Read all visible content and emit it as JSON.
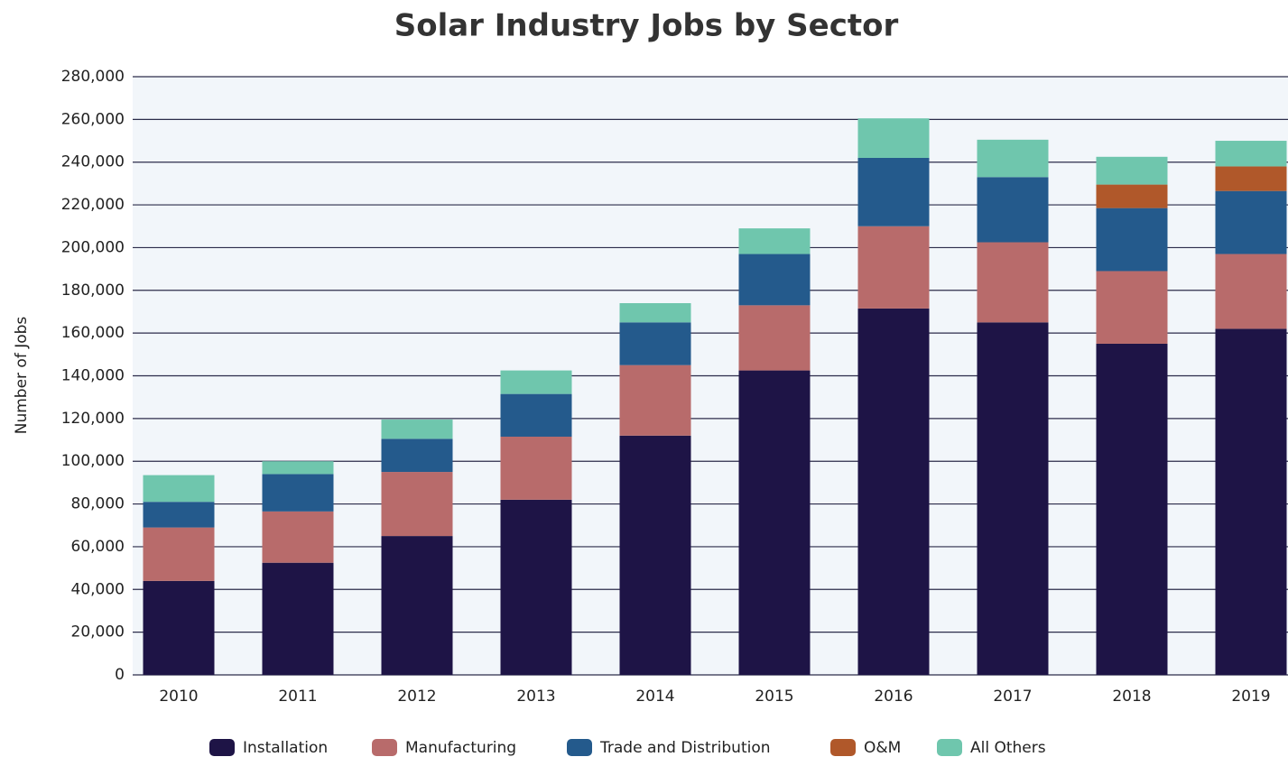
{
  "chart_data": {
    "type": "stacked_bar",
    "title": "Solar Industry Jobs by Sector",
    "y_label": "Number of Jobs",
    "categories": [
      "2010",
      "2011",
      "2012",
      "2013",
      "2014",
      "2015",
      "2016",
      "2017",
      "2018",
      "2019"
    ],
    "series": [
      {
        "name": "Installation",
        "color": "#1e1446",
        "values": [
          44000,
          52500,
          65000,
          82000,
          112000,
          142500,
          171500,
          165000,
          155000,
          162000
        ]
      },
      {
        "name": "Manufacturing",
        "color": "#b86b6b",
        "values": [
          25000,
          24000,
          30000,
          29500,
          33000,
          30500,
          38500,
          37500,
          34000,
          35000
        ]
      },
      {
        "name": "Trade and Distribution",
        "color": "#245a8c",
        "values": [
          12000,
          17500,
          15500,
          20000,
          20000,
          24000,
          32000,
          30500,
          29500,
          29500
        ]
      },
      {
        "name": "O&M",
        "color": "#b0582a",
        "values": [
          0,
          0,
          0,
          0,
          0,
          0,
          0,
          0,
          11000,
          11500
        ]
      },
      {
        "name": "All Others",
        "color": "#6fc6ad",
        "values": [
          12500,
          6000,
          9000,
          11000,
          9000,
          12000,
          18500,
          17500,
          13000,
          12000
        ]
      }
    ],
    "ylim": [
      0,
      280000
    ],
    "yticks": [
      0,
      {
        "value": 20000,
        "label": "20,000"
      },
      {
        "value": 40000,
        "label": "40,000"
      },
      {
        "value": 60000,
        "label": "60,000"
      },
      {
        "value": 80000,
        "label": "80,000"
      },
      {
        "value": 100000,
        "label": "100,000"
      },
      {
        "value": 120000,
        "label": "120,000"
      },
      {
        "value": 140000,
        "label": "140,000"
      },
      {
        "value": 160000,
        "label": "160,000"
      },
      {
        "value": 180000,
        "label": "180,000"
      },
      {
        "value": 200000,
        "label": "200,000"
      },
      {
        "value": 220000,
        "label": "220,000"
      },
      {
        "value": 240000,
        "label": "240,000"
      },
      {
        "value": 260000,
        "label": "260,000"
      },
      {
        "value": 280000,
        "label": "280,000"
      }
    ],
    "grid": true
  }
}
